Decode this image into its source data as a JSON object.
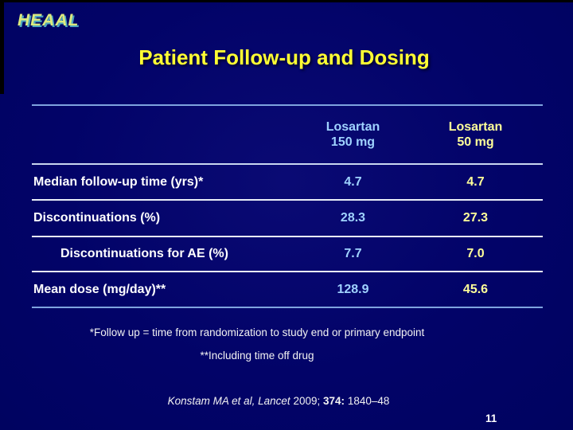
{
  "slide": {
    "logo": "HEAAL",
    "title": "Patient Follow-up and Dosing",
    "page_number": "11"
  },
  "table": {
    "columns": [
      {
        "line1": "Losartan",
        "line2": "150 mg"
      },
      {
        "line1": "Losartan",
        "line2": "50 mg"
      }
    ],
    "rows": [
      {
        "label": "Median follow-up time (yrs)*",
        "values": [
          "4.7",
          "4.7"
        ]
      },
      {
        "label": "Discontinuations (%)",
        "values": [
          "28.3",
          "27.3"
        ]
      },
      {
        "label": "Discontinuations for AE (%)",
        "values": [
          "7.7",
          "7.0"
        ]
      },
      {
        "label": "Mean dose (mg/day)**",
        "values": [
          "128.9",
          "45.6"
        ]
      }
    ]
  },
  "footnotes": [
    "*Follow up = time from randomization to study end or primary endpoint",
    "**Including time off drug"
  ],
  "citation": {
    "source_italic": "Konstam MA et al, Lancet",
    "year": "2009;",
    "volume": "374:",
    "pages": "1840–48"
  },
  "colors": {
    "background": "#000366",
    "title": "#ffff33",
    "logo": "#dcea7e",
    "losartan_150_column": "#9fd2ff",
    "losartan_50_column": "#ffff99",
    "row_label_text": "#ffffff",
    "line_blue": "#7ea3df",
    "line_white": "#e8edf8"
  },
  "chart_data": {
    "type": "table",
    "title": "Patient Follow-up and Dosing",
    "columns": [
      "",
      "Losartan 150 mg",
      "Losartan 50 mg"
    ],
    "rows": [
      [
        "Median follow-up time (yrs)*",
        "4.7",
        "4.7"
      ],
      [
        "Discontinuations (%)",
        "28.3",
        "27.3"
      ],
      [
        "Discontinuations for AE (%)",
        "7.7",
        "7.0"
      ],
      [
        "Mean dose (mg/day)**",
        "128.9",
        "45.6"
      ]
    ]
  }
}
